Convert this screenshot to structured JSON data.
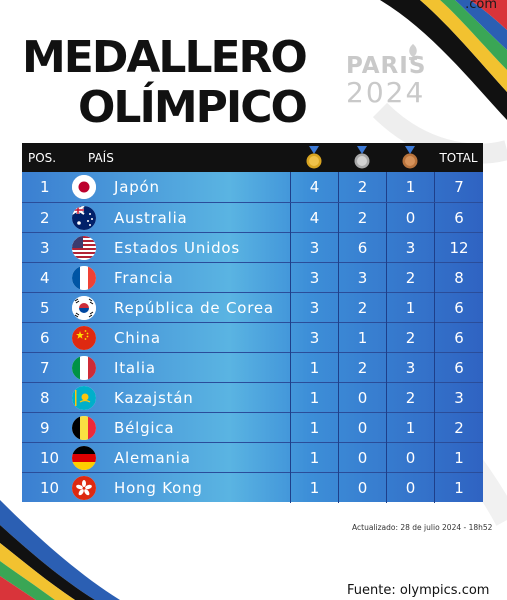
{
  "header": {
    "brand": ".com",
    "title_line1": "MEDALLERO",
    "title_line2": "OLÍMPICO",
    "games_city": "PARIS",
    "games_year": "2024"
  },
  "table": {
    "columns": {
      "pos": "POS.",
      "country": "PAÍS",
      "gold_icon": "gold-medal-icon",
      "silver_icon": "silver-medal-icon",
      "bronze_icon": "bronze-medal-icon",
      "total": "TOTAL"
    },
    "rows": [
      {
        "pos": "1",
        "country": "Japón",
        "flag": "japan-flag",
        "gold": "4",
        "silver": "2",
        "bronze": "1",
        "total": "7"
      },
      {
        "pos": "2",
        "country": "Australia",
        "flag": "australia-flag",
        "gold": "4",
        "silver": "2",
        "bronze": "0",
        "total": "6"
      },
      {
        "pos": "3",
        "country": "Estados Unidos",
        "flag": "usa-flag",
        "gold": "3",
        "silver": "6",
        "bronze": "3",
        "total": "12"
      },
      {
        "pos": "4",
        "country": "Francia",
        "flag": "france-flag",
        "gold": "3",
        "silver": "3",
        "bronze": "2",
        "total": "8"
      },
      {
        "pos": "5",
        "country": "República de Corea",
        "flag": "korea-flag",
        "gold": "3",
        "silver": "2",
        "bronze": "1",
        "total": "6"
      },
      {
        "pos": "6",
        "country": "China",
        "flag": "china-flag",
        "gold": "3",
        "silver": "1",
        "bronze": "2",
        "total": "6"
      },
      {
        "pos": "7",
        "country": "Italia",
        "flag": "italy-flag",
        "gold": "1",
        "silver": "2",
        "bronze": "3",
        "total": "6"
      },
      {
        "pos": "8",
        "country": "Kazajstán",
        "flag": "kazakhstan-flag",
        "gold": "1",
        "silver": "0",
        "bronze": "2",
        "total": "3"
      },
      {
        "pos": "9",
        "country": "Bélgica",
        "flag": "belgium-flag",
        "gold": "1",
        "silver": "0",
        "bronze": "1",
        "total": "2"
      },
      {
        "pos": "10",
        "country": "Alemania",
        "flag": "germany-flag",
        "gold": "1",
        "silver": "0",
        "bronze": "0",
        "total": "1"
      },
      {
        "pos": "10",
        "country": "Hong Kong",
        "flag": "hongkong-flag",
        "gold": "1",
        "silver": "0",
        "bronze": "0",
        "total": "1"
      }
    ]
  },
  "footer": {
    "updated": "Actualizado: 28 de julio 2024 - 18h52",
    "source": "Fuente: olympics.com"
  },
  "colors": {
    "gold": "#d9a521",
    "silver": "#a8a8a8",
    "bronze": "#b8733c",
    "ribbon_blue": "#2b5fb3",
    "ribbon_yellow": "#f2c230",
    "ribbon_green": "#3aa655",
    "ribbon_red": "#d9343a"
  }
}
